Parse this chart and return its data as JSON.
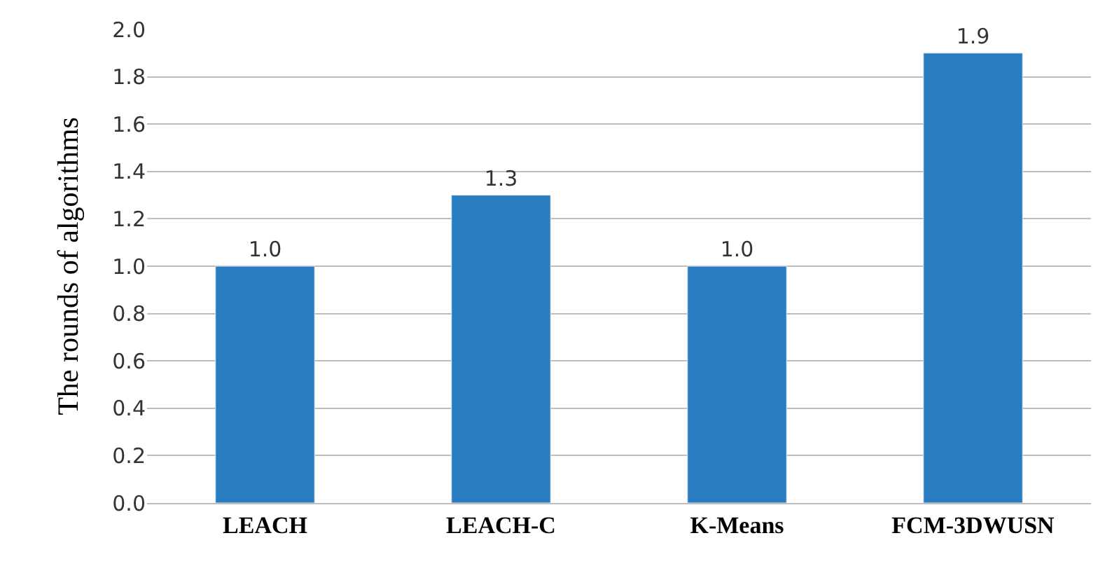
{
  "chart_data": {
    "type": "bar",
    "ylabel": "The rounds of algorithms",
    "categories": [
      "LEACH",
      "LEACH-C",
      "K-Means",
      "FCM-3DWUSN"
    ],
    "values": [
      1.0,
      1.3,
      1.0,
      1.9
    ],
    "value_labels": [
      "1.0",
      "1.3",
      "1.0",
      "1.9"
    ],
    "color": "#2a7cc0",
    "ylim": [
      0,
      2.0
    ],
    "yticks": [
      {
        "value": 0,
        "label": "0.0"
      },
      {
        "value": 0.2,
        "label": "0.2"
      },
      {
        "value": 0.4,
        "label": "0.4"
      },
      {
        "value": 0.6,
        "label": "0.6"
      },
      {
        "value": 0.8,
        "label": "0.8"
      },
      {
        "value": 1.0,
        "label": "1.0"
      },
      {
        "value": 1.2,
        "label": "1.2"
      },
      {
        "value": 1.4,
        "label": "1.4"
      },
      {
        "value": 1.6,
        "label": "1.6"
      },
      {
        "value": 1.8,
        "label": "1.8"
      },
      {
        "value": 2.0,
        "label": "2.0"
      }
    ],
    "grid": "y",
    "legend": false
  }
}
